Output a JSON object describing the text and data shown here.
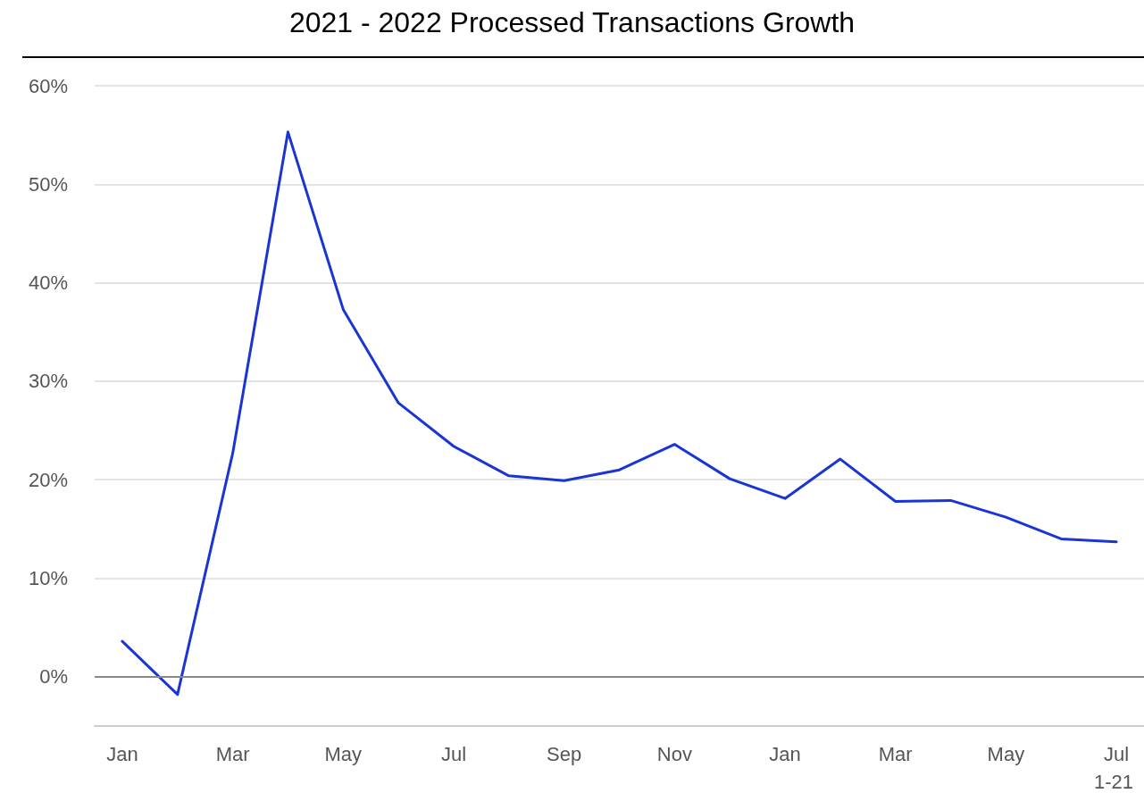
{
  "chart_data": {
    "type": "line",
    "title": "2021 - 2022 Processed Transactions Growth",
    "categories": [
      "Jan",
      null,
      "Mar",
      null,
      "May",
      null,
      "Jul",
      null,
      "Sep",
      null,
      "Nov",
      null,
      "Jan",
      null,
      "Mar",
      null,
      "May",
      null,
      "Jul"
    ],
    "series": [
      {
        "color": "#1a35d4",
        "values": [
          3.6,
          -1.8,
          22.7,
          55.3,
          37.3,
          27.8,
          23.4,
          20.4,
          19.9,
          21.0,
          23.6,
          20.1,
          18.1,
          22.1,
          17.8,
          17.9,
          16.2,
          14.0,
          13.7
        ]
      }
    ],
    "ylim": [
      -5,
      60
    ],
    "yticks": [
      {
        "value": 0,
        "label": "0%"
      },
      {
        "value": 10,
        "label": "10%"
      },
      {
        "value": 20,
        "label": "20%"
      },
      {
        "value": 30,
        "label": "30%"
      },
      {
        "value": 40,
        "label": "40%"
      },
      {
        "value": 50,
        "label": "50%"
      },
      {
        "value": 60,
        "label": "60%"
      }
    ],
    "grid": "y",
    "marker": "none",
    "line_style": "solid",
    "annotations": [
      "1-21"
    ]
  }
}
